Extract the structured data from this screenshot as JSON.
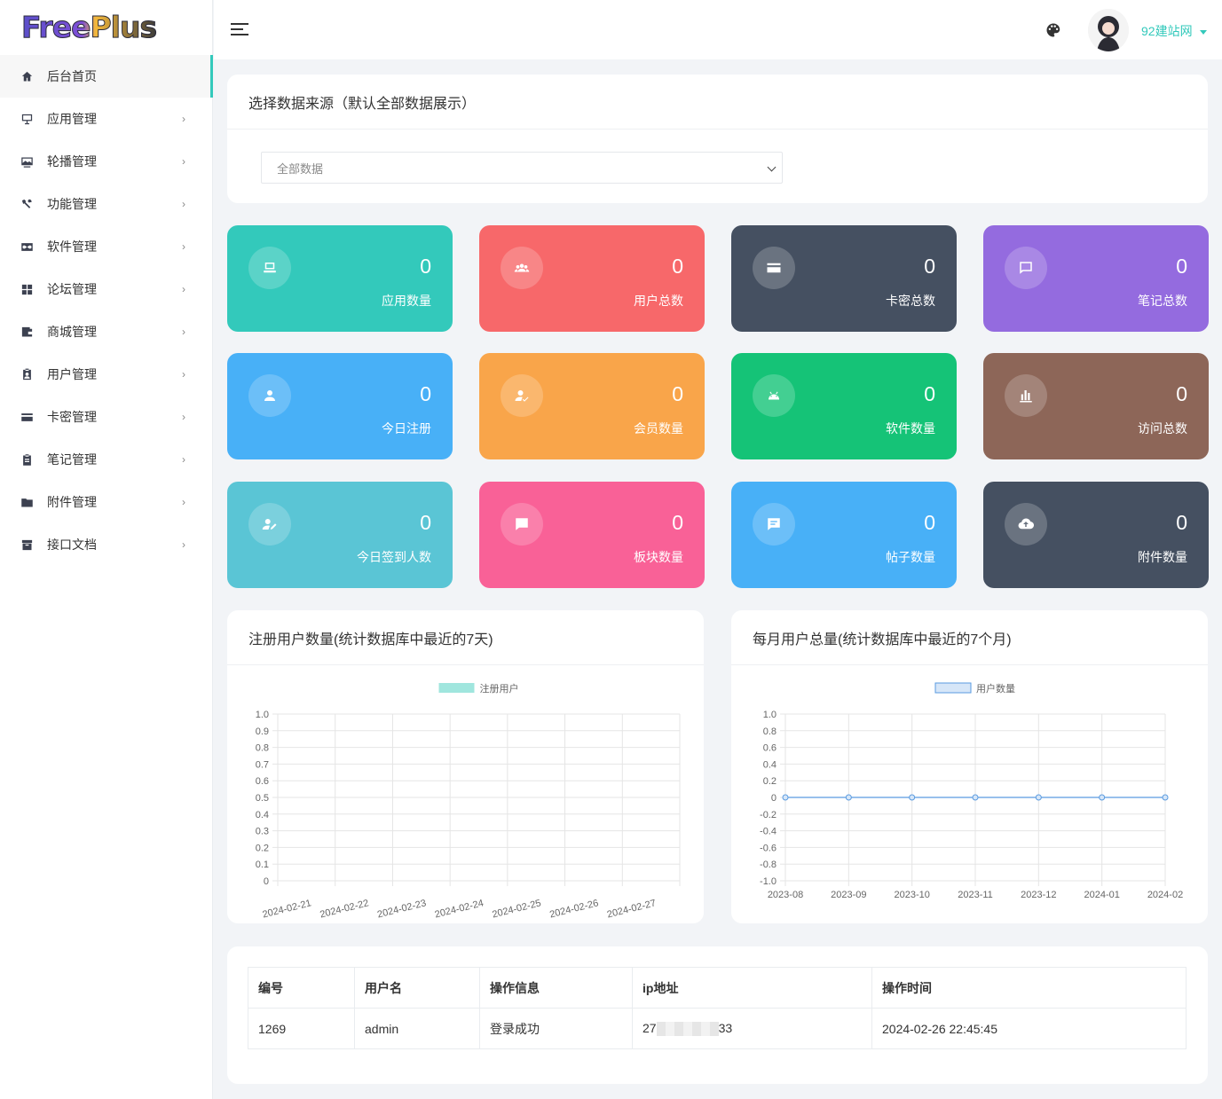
{
  "brand": {
    "logo_text": "FreePlus"
  },
  "header": {
    "username": "92建站网"
  },
  "sidebar": {
    "items": [
      {
        "label": "后台首页",
        "icon": "home-icon"
      },
      {
        "label": "应用管理",
        "icon": "monitor-icon"
      },
      {
        "label": "轮播管理",
        "icon": "image-icon"
      },
      {
        "label": "功能管理",
        "icon": "tools-icon"
      },
      {
        "label": "软件管理",
        "icon": "infinity-icon"
      },
      {
        "label": "论坛管理",
        "icon": "grid-icon"
      },
      {
        "label": "商城管理",
        "icon": "wallet-icon"
      },
      {
        "label": "用户管理",
        "icon": "id-badge-icon"
      },
      {
        "label": "卡密管理",
        "icon": "card-icon"
      },
      {
        "label": "笔记管理",
        "icon": "clipboard-icon"
      },
      {
        "label": "附件管理",
        "icon": "folder-icon"
      },
      {
        "label": "接口文档",
        "icon": "archive-icon"
      }
    ]
  },
  "source": {
    "title": "选择数据来源（默认全部数据展示）",
    "selected": "全部数据"
  },
  "stats": [
    {
      "value": "0",
      "label": "应用数量",
      "icon": "laptop-icon",
      "color": "#33c9bb"
    },
    {
      "value": "0",
      "label": "用户总数",
      "icon": "users-icon",
      "color": "#f7686a"
    },
    {
      "value": "0",
      "label": "卡密总数",
      "icon": "card-icon",
      "color": "#455061"
    },
    {
      "value": "0",
      "label": "笔记总数",
      "icon": "comment-icon",
      "color": "#946bdf"
    },
    {
      "value": "0",
      "label": "今日注册",
      "icon": "user-icon",
      "color": "#48b0f7"
    },
    {
      "value": "0",
      "label": "会员数量",
      "icon": "user-check-icon",
      "color": "#f9a54a"
    },
    {
      "value": "0",
      "label": "软件数量",
      "icon": "android-icon",
      "color": "#15c377"
    },
    {
      "value": "0",
      "label": "访问总数",
      "icon": "bar-chart-icon",
      "color": "#8d6658"
    },
    {
      "value": "0",
      "label": "今日签到人数",
      "icon": "user-edit-icon",
      "color": "#5ac5d5"
    },
    {
      "value": "0",
      "label": "板块数量",
      "icon": "message-icon",
      "color": "#f96197"
    },
    {
      "value": "0",
      "label": "帖子数量",
      "icon": "message-text-icon",
      "color": "#48b0f7"
    },
    {
      "value": "0",
      "label": "附件数量",
      "icon": "cloud-upload-icon",
      "color": "#455061"
    }
  ],
  "chart_left_title": "注册用户数量(统计数据库中最近的7天)",
  "chart_right_title": "每月用户总量(统计数据库中最近的7个月)",
  "chart_data": [
    {
      "type": "bar",
      "legend": "注册用户",
      "categories": [
        "2024-02-21",
        "2024-02-22",
        "2024-02-23",
        "2024-02-24",
        "2024-02-25",
        "2024-02-26",
        "2024-02-27"
      ],
      "series": [
        {
          "name": "注册用户",
          "values": [
            0,
            0,
            0,
            0,
            0,
            0,
            0
          ]
        }
      ],
      "yticks": [
        "1.0",
        "0.9",
        "0.8",
        "0.7",
        "0.6",
        "0.5",
        "0.4",
        "0.3",
        "0.2",
        "0.1",
        "0"
      ],
      "ylim": [
        0,
        1
      ],
      "grid": true,
      "legend_position": "top",
      "color": "#a0e6de"
    },
    {
      "type": "line",
      "legend": "用户数量",
      "categories": [
        "2023-08",
        "2023-09",
        "2023-10",
        "2023-11",
        "2023-12",
        "2024-01",
        "2024-02"
      ],
      "series": [
        {
          "name": "用户数量",
          "values": [
            0,
            0,
            0,
            0,
            0,
            0,
            0
          ]
        }
      ],
      "yticks": [
        "1.0",
        "0.8",
        "0.6",
        "0.4",
        "0.2",
        "0",
        "-0.2",
        "-0.4",
        "-0.6",
        "-0.8",
        "-1.0"
      ],
      "ylim": [
        -1,
        1
      ],
      "grid": true,
      "legend_position": "top",
      "color": "#5a9be0"
    }
  ],
  "log": {
    "headers": [
      "编号",
      "用户名",
      "操作信息",
      "ip地址",
      "操作时间"
    ],
    "rows": [
      {
        "id": "1269",
        "user": "admin",
        "info": "登录成功",
        "ip_start": "27",
        "ip_end": "33",
        "time": "2024-02-26 22:45:45"
      }
    ]
  }
}
